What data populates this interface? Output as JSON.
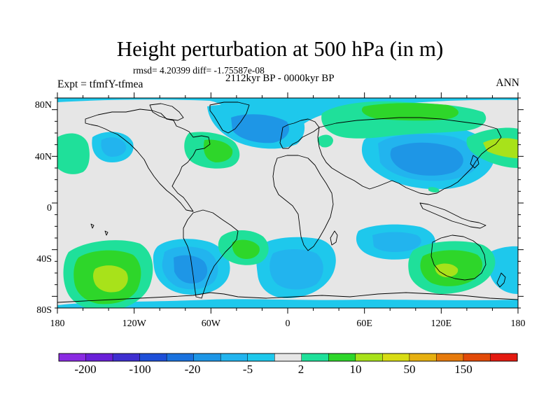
{
  "title": "Height perturbation at 500 hPa (in m)",
  "stats": "rmsd= 4.20399 diff= -1.75587e-08",
  "period": "2112kyr BP - 0000kyr BP",
  "experiment": "Expt = tfmfY-tfmea",
  "season": "ANN",
  "x_ticks": [
    "180",
    "120W",
    "60W",
    "0",
    "60E",
    "120E",
    "180"
  ],
  "y_ticks": [
    "80N",
    "40N",
    "0",
    "40S",
    "80S"
  ],
  "colorbar": {
    "colors": [
      "#8a2be2",
      "#6a20d8",
      "#3f2fd0",
      "#1e4fd8",
      "#1a72de",
      "#1e96e6",
      "#22b4ee",
      "#1ec8ec",
      "#e6e6e6",
      "#1fe09a",
      "#2ed62a",
      "#a8e21a",
      "#d8dc14",
      "#e6b010",
      "#e67a0c",
      "#e24a08",
      "#e41a10"
    ],
    "labels": [
      "-200",
      "-100",
      "-20",
      "-5",
      "2",
      "10",
      "50",
      "150"
    ]
  },
  "palette": {
    "neutral": "#e6e6e6",
    "light_blue": "#1ec8ec",
    "mid_blue": "#22b4ee",
    "blue": "#1e96e6",
    "deep_blue": "#1a72de",
    "teal_green": "#1fe09a",
    "green": "#2ed62a",
    "yellow_green": "#a8e21a"
  }
}
